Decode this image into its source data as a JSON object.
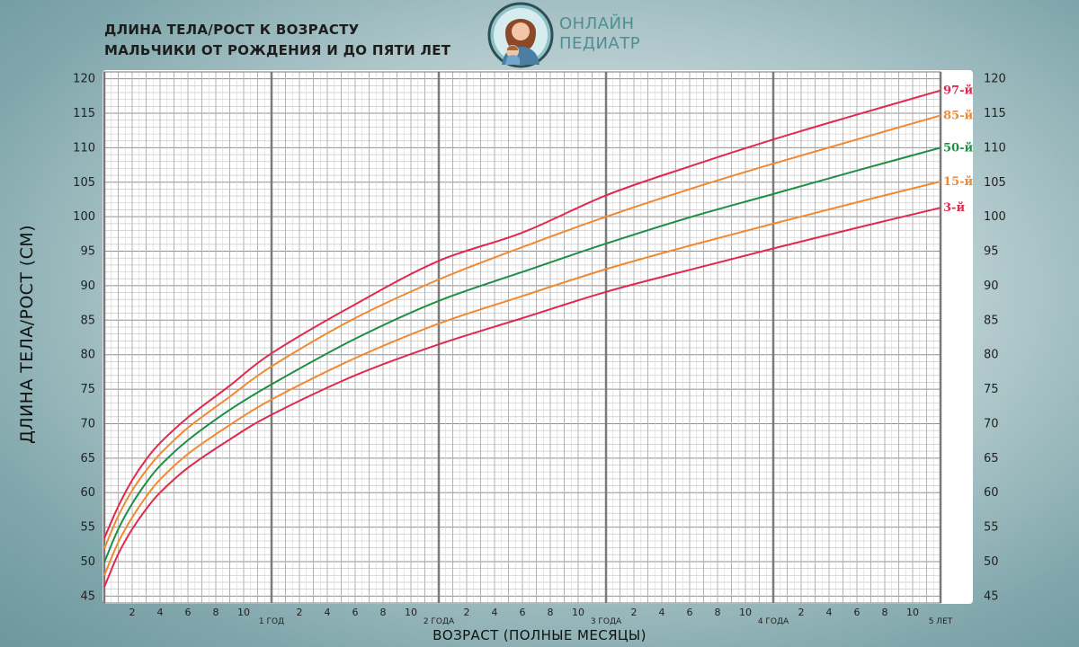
{
  "header": {
    "title_line1": "ДЛИНА ТЕЛА/РОСТ К ВОЗРАСТУ",
    "title_line2": "МАЛЬЧИКИ ОТ РОЖДЕНИЯ И ДО ПЯТИ ЛЕТ"
  },
  "logo": {
    "line1": "ОНЛАЙН",
    "line2": "ПЕДИАТР",
    "color": "#4f8f93"
  },
  "chart_data": {
    "type": "line",
    "title": "ДЛИНА ТЕЛА/РОСТ К ВОЗРАСТУ МАЛЬЧИКИ ОТ РОЖДЕНИЯ И ДО ПЯТИ ЛЕТ",
    "xlabel": "ВОЗРАСТ (ПОЛНЫЕ МЕСЯЦЫ)",
    "ylabel": "ДЛИНА ТЕЛА/РОСТ (СМ)",
    "xlim": [
      0,
      60
    ],
    "ylim": [
      44,
      121
    ],
    "grid": true,
    "y_ticks": [
      45,
      50,
      55,
      60,
      65,
      70,
      75,
      80,
      85,
      90,
      95,
      100,
      105,
      110,
      115,
      120
    ],
    "x_month_ticks": [
      "2",
      "4",
      "6",
      "8",
      "10"
    ],
    "x_year_labels": [
      "1 ГОД",
      "2 ГОДА",
      "3 ГОДА",
      "4 ГОДА",
      "5 ЛЕТ"
    ],
    "x": [
      0,
      1,
      2,
      3,
      4,
      6,
      9,
      12,
      18,
      24,
      30,
      36,
      42,
      48,
      54,
      60
    ],
    "series": [
      {
        "name": "97-й",
        "color": "#e0294f",
        "values": [
          53.4,
          58.0,
          61.8,
          64.8,
          67.2,
          70.9,
          75.5,
          80.2,
          87.3,
          93.6,
          97.7,
          103.1,
          107.3,
          111.2,
          114.8,
          118.3
        ]
      },
      {
        "name": "85-й",
        "color": "#f08a32",
        "values": [
          51.9,
          56.6,
          60.3,
          63.2,
          65.6,
          69.4,
          73.9,
          78.3,
          85.3,
          90.9,
          95.6,
          100.0,
          104.0,
          107.7,
          111.2,
          114.7
        ]
      },
      {
        "name": "50-й",
        "color": "#1e8f44",
        "values": [
          49.9,
          54.7,
          58.4,
          61.4,
          63.9,
          67.6,
          72.0,
          75.7,
          82.3,
          87.8,
          92.0,
          96.1,
          99.9,
          103.3,
          106.7,
          110.0
        ]
      },
      {
        "name": "15-й",
        "color": "#f08a32",
        "values": [
          48.0,
          52.8,
          56.4,
          59.4,
          61.9,
          65.6,
          69.8,
          73.5,
          79.5,
          84.5,
          88.5,
          92.4,
          95.8,
          99.0,
          102.1,
          105.1
        ]
      },
      {
        "name": "3-й",
        "color": "#e0294f",
        "values": [
          46.3,
          51.1,
          54.7,
          57.6,
          60.0,
          63.6,
          67.7,
          71.3,
          77.0,
          81.5,
          85.3,
          89.1,
          92.3,
          95.4,
          98.4,
          101.3
        ]
      }
    ]
  }
}
